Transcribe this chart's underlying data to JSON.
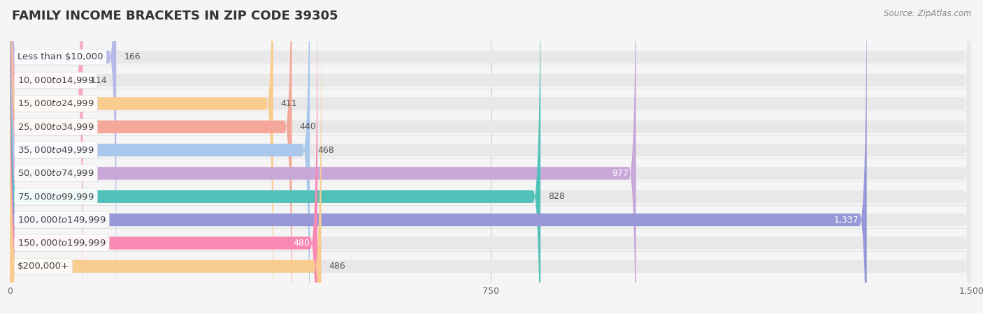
{
  "title": "FAMILY INCOME BRACKETS IN ZIP CODE 39305",
  "source_text": "Source: ZipAtlas.com",
  "categories": [
    "Less than $10,000",
    "$10,000 to $14,999",
    "$15,000 to $24,999",
    "$25,000 to $34,999",
    "$35,000 to $49,999",
    "$50,000 to $74,999",
    "$75,000 to $99,999",
    "$100,000 to $149,999",
    "$150,000 to $199,999",
    "$200,000+"
  ],
  "values": [
    166,
    114,
    411,
    440,
    468,
    977,
    828,
    1337,
    480,
    486
  ],
  "bar_colors": [
    "#b8b8e8",
    "#f5aabf",
    "#f9cc90",
    "#f5a89a",
    "#aac8ec",
    "#c8a8d8",
    "#50c0b8",
    "#9898d8",
    "#f888b4",
    "#f9cc90"
  ],
  "value_inside": [
    false,
    false,
    false,
    false,
    false,
    true,
    false,
    true,
    true,
    false
  ],
  "background_color": "#f5f5f5",
  "bar_bg_color": "#e8e8e8",
  "xlim_max": 1500,
  "xticks": [
    0,
    750,
    1500
  ],
  "title_fontsize": 13,
  "label_fontsize": 9.5,
  "value_fontsize": 9
}
